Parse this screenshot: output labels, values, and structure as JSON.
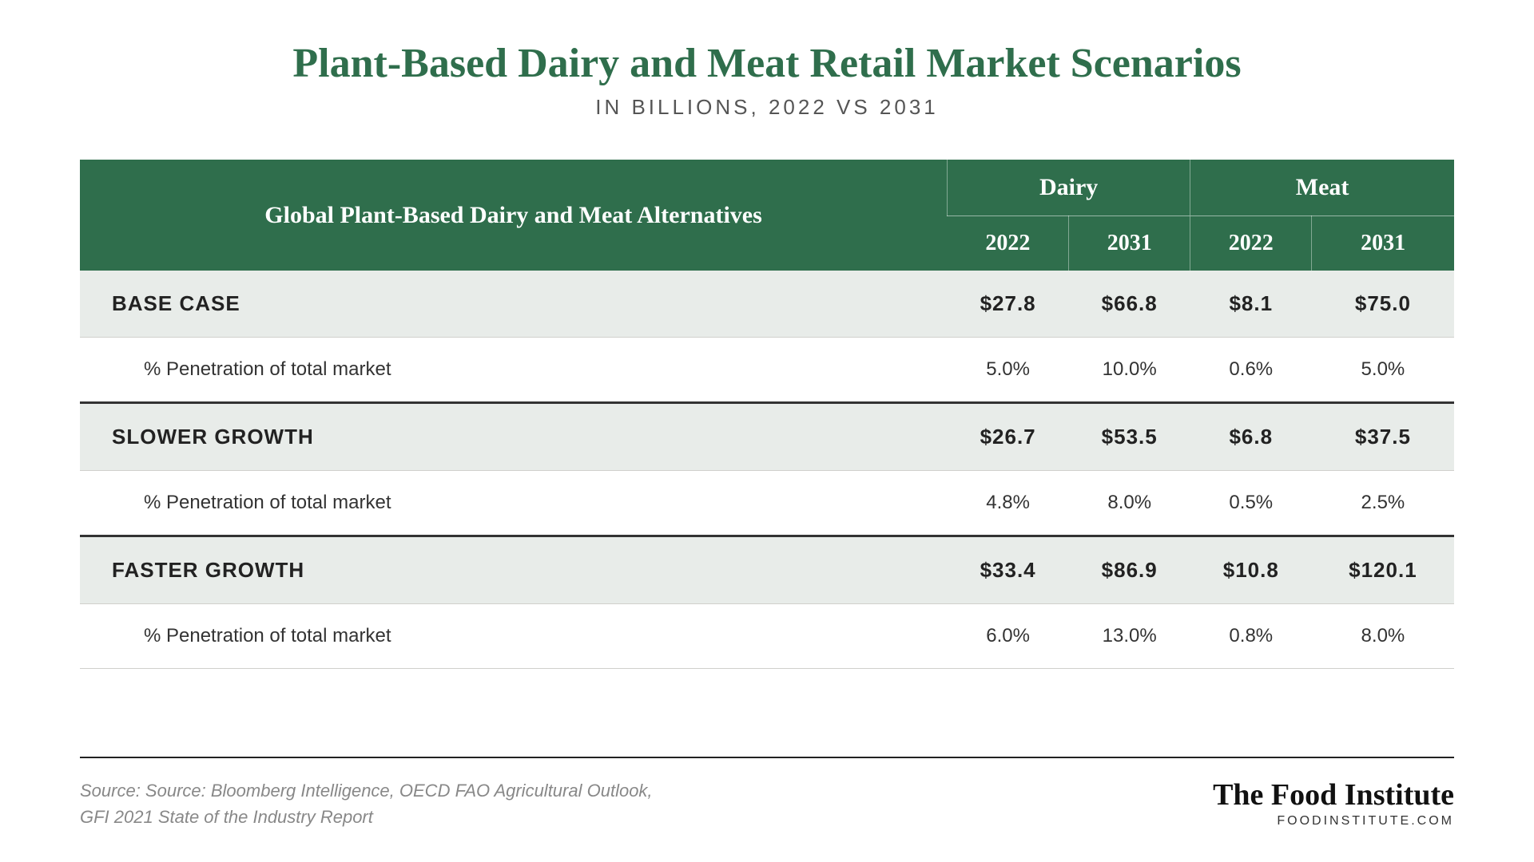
{
  "title": "Plant-Based Dairy and Meat Retail Market Scenarios",
  "subtitle": "IN BILLIONS, 2022 VS 2031",
  "style": {
    "title_color": "#2f6e4c",
    "title_fontsize": 52,
    "subtitle_color": "#555555",
    "subtitle_fontsize": 26,
    "header_bg": "#2f6e4c",
    "header_text_color": "#ffffff",
    "row_band_bg": "#e8ece9",
    "row_plain_bg": "#ffffff",
    "text_color": "#222222",
    "penetration_text_color": "#333333",
    "border_color": "#d0d0cc"
  },
  "table": {
    "type": "table",
    "corner_header": "Global Plant-Based Dairy and Meat Alternatives",
    "groups": [
      "Dairy",
      "Meat"
    ],
    "years": [
      "2022",
      "2031"
    ],
    "penetration_label": "% Penetration of total market",
    "scenarios": [
      {
        "name": "BASE CASE",
        "dairy": [
          "$27.8",
          "$66.8"
        ],
        "meat": [
          "$8.1",
          "$75.0"
        ],
        "pen_dairy": [
          "5.0%",
          "10.0%"
        ],
        "pen_meat": [
          "0.6%",
          "5.0%"
        ]
      },
      {
        "name": "SLOWER GROWTH",
        "dairy": [
          "$26.7",
          "$53.5"
        ],
        "meat": [
          "$6.8",
          "$37.5"
        ],
        "pen_dairy": [
          "4.8%",
          "8.0%"
        ],
        "pen_meat": [
          "0.5%",
          "2.5%"
        ]
      },
      {
        "name": "FASTER GROWTH",
        "dairy": [
          "$33.4",
          "$86.9"
        ],
        "meat": [
          "$10.8",
          "$120.1"
        ],
        "pen_dairy": [
          "6.0%",
          "13.0%"
        ],
        "pen_meat": [
          "0.8%",
          "8.0%"
        ]
      }
    ]
  },
  "footer": {
    "source_line1": "Source: Source: Bloomberg Intelligence, OECD FAO Agricultural Outlook,",
    "source_line2": "GFI 2021 State of the Industry Report",
    "brand_name": "The Food Institute",
    "brand_url": "FOODINSTITUTE.COM"
  }
}
